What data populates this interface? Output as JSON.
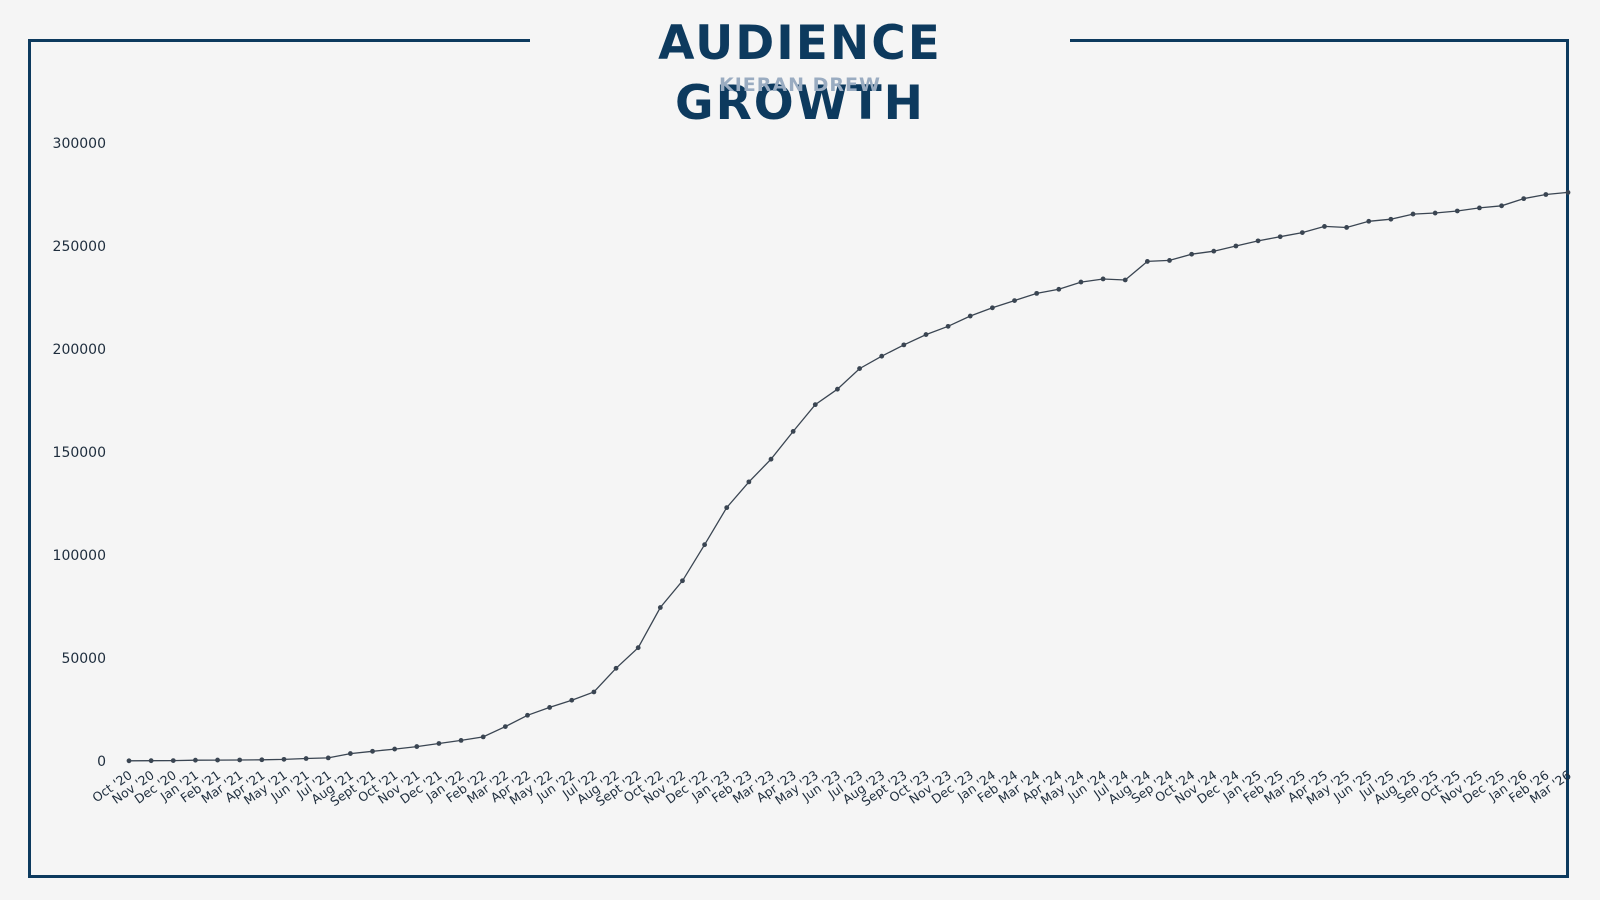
{
  "colors": {
    "accent": "#0d3a5e",
    "subtitle": "#9aacc1",
    "line": "#3a4552",
    "text": "#1e2d3d",
    "background": "#f5f5f5"
  },
  "chart_data": {
    "type": "line",
    "title": "AUDIENCE GROWTH",
    "subtitle": "KIERAN DREW",
    "xlabel": "",
    "ylabel": "",
    "ylim": [
      0,
      300000
    ],
    "yticks": [
      0,
      50000,
      100000,
      150000,
      200000,
      250000,
      300000
    ],
    "grid": false,
    "legend": "none",
    "categories": [
      "Oct '20",
      "Nov '20",
      "Dec '20",
      "Jan '21",
      "Feb '21",
      "Mar '21",
      "Apr '21",
      "May '21",
      "Jun '21",
      "Jul '21",
      "Aug '21",
      "Sept '21",
      "Oct '21",
      "Nov '21",
      "Dec '21",
      "Jan '22",
      "Feb '22",
      "Mar '22",
      "Apr '22",
      "May '22",
      "Jun '22",
      "Jul '22",
      "Aug '22",
      "Sept '22",
      "Oct '22",
      "Nov '22",
      "Dec '22",
      "Jan '23",
      "Feb '23",
      "Mar '23",
      "Apr '23",
      "May '23",
      "Jun '23",
      "Jul '23",
      "Aug '23",
      "Sept '23",
      "Oct '23",
      "Nov '23",
      "Dec '23",
      "Jan '24",
      "Feb '24",
      "Mar '24",
      "Apr '24",
      "May '24",
      "Jun '24",
      "Jul '24",
      "Aug '24",
      "Sep '24",
      "Oct '24",
      "Nov '24",
      "Dec '24",
      "Jan '25",
      "Feb '25",
      "Mar '25",
      "Apr '25",
      "May '25",
      "Jun '25",
      "Jul '25",
      "Aug '25",
      "Sep '25",
      "Oct '25",
      "Nov '25",
      "Dec '25",
      "Jan '26",
      "Feb '26",
      "Mar '26"
    ],
    "series": [
      {
        "values": [
          100,
          150,
          200,
          400,
          450,
          500,
          600,
          800,
          1200,
          1500,
          3600,
          4700,
          5800,
          7000,
          8500,
          10000,
          11700,
          16700,
          22200,
          26000,
          29500,
          33500,
          45000,
          55000,
          74500,
          87500,
          105000,
          123000,
          135500,
          146500,
          160000,
          173000,
          180500,
          190500,
          196500,
          202000,
          207000,
          211000,
          216000,
          220000,
          223500,
          227000,
          229000,
          232500,
          234000,
          233500,
          242500,
          243000,
          246000,
          247500,
          250000,
          252500,
          254500,
          256500,
          259500,
          259000,
          262000,
          263000,
          265500,
          266000,
          267000,
          268500,
          269500,
          273000,
          275000,
          276000
        ]
      }
    ]
  }
}
